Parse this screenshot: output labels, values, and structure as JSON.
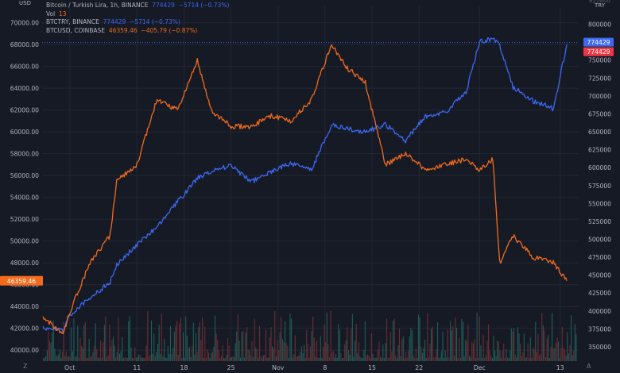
{
  "legend": {
    "title": "Bitcoin / Turkish Lira, 1h, BINANCE",
    "title_price": "774429",
    "title_change": "−5714 (−0.73%)",
    "vol_label": "Vol",
    "vol_value": "13",
    "s1_label": "BTCTRY, BINANCE",
    "s1_price": "774429",
    "s1_change": "−5714 (−0.73%)",
    "s2_label": "BTCUSD, COINBASE",
    "s2_price": "46359.46",
    "s2_change": "−405.79 (−0.87%)"
  },
  "left_corner": "USD",
  "right_corner": "TRY",
  "right_top_partial": "825000",
  "bottom_left_btn": "Z",
  "bottom_right_btn": "A",
  "colors": {
    "background": "#161a25",
    "grid": "#232735",
    "try_line": "#3d68f2",
    "usd_line": "#f26b1d",
    "price_tag_red": "#f23645",
    "vol_up": "#1f5e57",
    "vol_down": "#6b2d33"
  },
  "chart_data": {
    "type": "line",
    "x_tick_labels": [
      "Oct",
      "11",
      "18",
      "25",
      "Nov",
      "8",
      "15",
      "22",
      "Dec",
      "13"
    ],
    "y_left_ticks": [
      "40000.00",
      "42000.00",
      "44000.00",
      "46000.00",
      "48000.00",
      "50000.00",
      "52000.00",
      "54000.00",
      "56000.00",
      "58000.00",
      "60000.00",
      "62000.00",
      "64000.00",
      "66000.00",
      "68000.00",
      "70000.00"
    ],
    "y_right_ticks": [
      "350000",
      "375000",
      "400000",
      "425000",
      "450000",
      "475000",
      "500000",
      "525000",
      "550000",
      "575000",
      "600000",
      "625000",
      "650000",
      "675000",
      "700000",
      "725000",
      "750000",
      "775000",
      "800000"
    ],
    "y_left_range": [
      39000,
      71500
    ],
    "y_right_range": [
      330000,
      825000
    ],
    "x": [
      "Sep 27",
      "Sep 30",
      "Oct 1",
      "Oct 4",
      "Oct 7",
      "Oct 8",
      "Oct 11",
      "Oct 14",
      "Oct 17",
      "Oct 20",
      "Oct 22",
      "Oct 25",
      "Oct 28",
      "Oct 31",
      "Nov 3",
      "Nov 6",
      "Nov 9",
      "Nov 11",
      "Nov 14",
      "Nov 17",
      "Nov 20",
      "Nov 23",
      "Nov 26",
      "Nov 29",
      "Dec 1",
      "Dec 3",
      "Dec 4",
      "Dec 6",
      "Dec 9",
      "Dec 12",
      "Dec 14"
    ],
    "series": [
      {
        "name": "BTCTRY, BINANCE",
        "axis": "right",
        "values": [
          377000,
          372000,
          395000,
          418000,
          440000,
          465000,
          492000,
          518000,
          552000,
          585000,
          595000,
          603000,
          580000,
          595000,
          606000,
          597000,
          660000,
          655000,
          650000,
          660000,
          638000,
          672000,
          678000,
          705000,
          776000,
          780000,
          770000,
          712000,
          693000,
          682000,
          772000
        ]
      },
      {
        "name": "BTCUSD, COINBASE",
        "axis": "left",
        "values": [
          43000,
          41500,
          43500,
          48000,
          50500,
          55500,
          57000,
          63000,
          62000,
          66500,
          62000,
          60500,
          60500,
          61500,
          61000,
          63000,
          68000,
          66000,
          64500,
          57000,
          58000,
          56500,
          57000,
          57500,
          56500,
          57500,
          48000,
          50500,
          48500,
          48000,
          46359
        ]
      }
    ],
    "last_values": {
      "left": "46359.46",
      "right_try": "774429",
      "right_red": "774429"
    },
    "grid": true
  }
}
